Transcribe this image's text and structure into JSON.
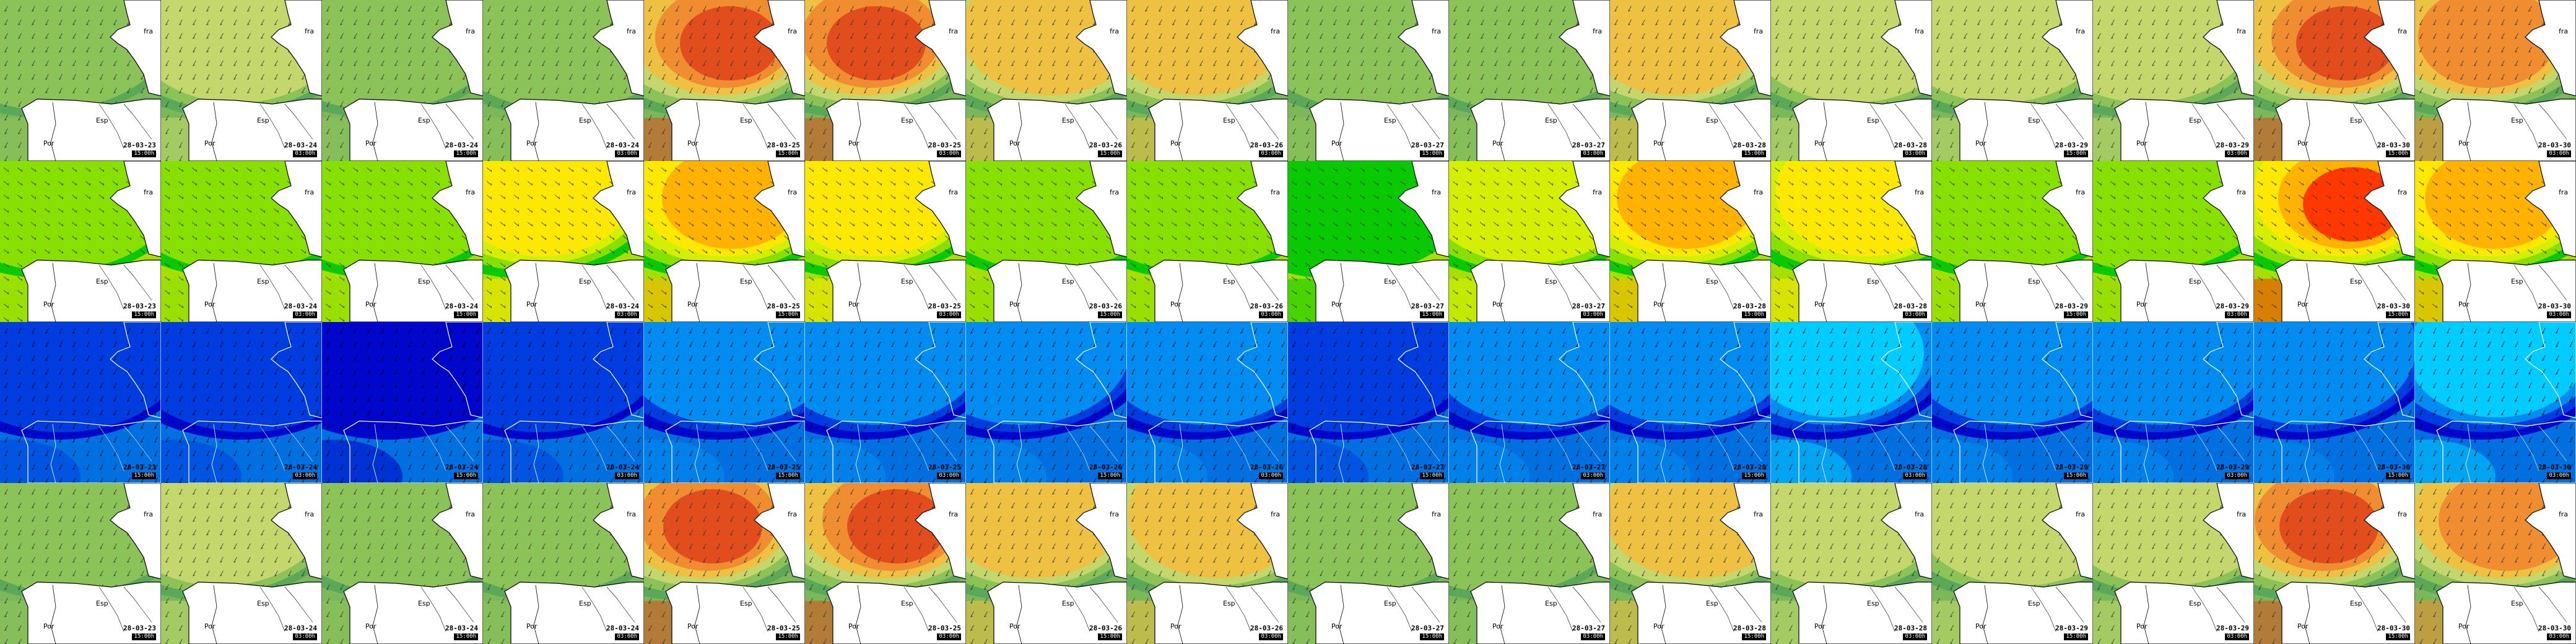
{
  "country_labels": {
    "fra": "fra",
    "esp": "Esp",
    "por": "Por"
  },
  "time_labels": [
    "15:00h",
    "03:00h"
  ],
  "dates": [
    "28-03-23",
    "28-03-24",
    "28-03-24",
    "28-03-24",
    "28-03-25",
    "28-03-25",
    "28-03-26",
    "28-03-26",
    "28-03-27",
    "28-03-27",
    "28-03-28",
    "28-03-28",
    "28-03-29",
    "28-03-29",
    "28-03-30",
    "28-03-30"
  ],
  "rows": [
    {
      "name": "wave-height",
      "palette": [
        "#5aa65a",
        "#8fc45a",
        "#c6d86e",
        "#f0c040",
        "#f08a30",
        "#e04a1e"
      ],
      "coast_color": "#000000",
      "background": "#7bb85a",
      "blobs": [
        1,
        2,
        1,
        1,
        5,
        5,
        3,
        3,
        1,
        1,
        3,
        2,
        2,
        2,
        5,
        4
      ]
    },
    {
      "name": "wave-period",
      "palette": [
        "#00c800",
        "#8ee000",
        "#d8f000",
        "#ffe800",
        "#ffb000",
        "#ff3000"
      ],
      "coast_color": "#000000",
      "background": "#a6e000",
      "blobs": [
        1,
        1,
        1,
        3,
        4,
        3,
        1,
        1,
        0,
        2,
        4,
        3,
        1,
        1,
        5,
        4
      ]
    },
    {
      "name": "wind-speed",
      "palette": [
        "#0000c8",
        "#0040e0",
        "#0090f0",
        "#00d0ff",
        "#40ffe0",
        "#80ff80"
      ],
      "coast_color": "#ffffff",
      "background": "#0070e0",
      "blobs": [
        1,
        1,
        0,
        1,
        2,
        2,
        2,
        2,
        1,
        2,
        2,
        3,
        2,
        2,
        2,
        3
      ]
    },
    {
      "name": "swell-height",
      "palette": [
        "#5aa65a",
        "#8fc45a",
        "#c6d86e",
        "#f0c040",
        "#f08a30",
        "#e04a1e"
      ],
      "coast_color": "#000000",
      "background": "#7bb85a",
      "blobs": [
        1,
        2,
        1,
        1,
        5,
        5,
        3,
        3,
        1,
        1,
        3,
        2,
        2,
        2,
        5,
        4
      ]
    }
  ]
}
